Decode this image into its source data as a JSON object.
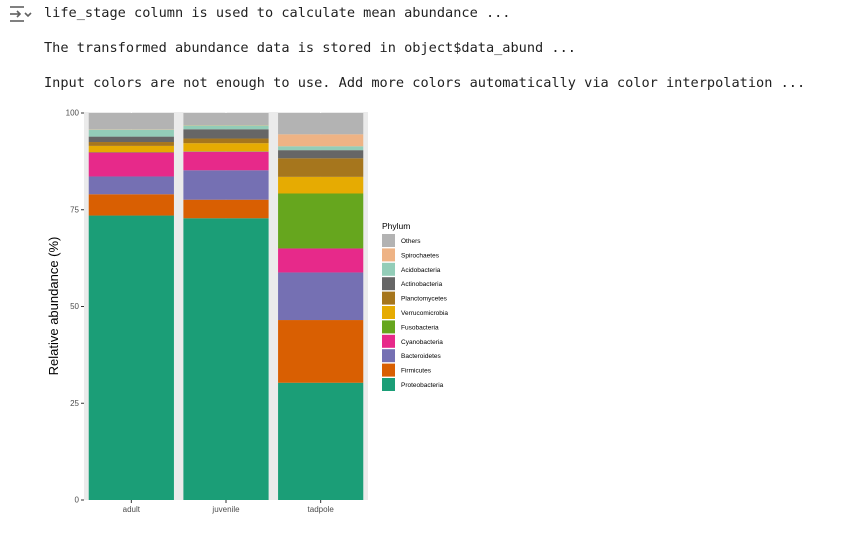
{
  "output": {
    "icon": "output-collapse-icon",
    "lines": [
      "life_stage column is used to calculate mean abundance ...",
      "The transformed abundance data is stored in object$data_abund ...",
      "Input colors are not enough to use. Add more colors automatically via color interpolation ..."
    ]
  },
  "chart_data": {
    "type": "bar",
    "stacked": true,
    "categories": [
      "adult",
      "juvenile",
      "tadpole"
    ],
    "ylabel": "Relative abundance (%)",
    "xlabel": "",
    "ylim": [
      0,
      100
    ],
    "yticks": [
      0,
      25,
      50,
      75,
      100
    ],
    "grid": true,
    "panel_background": "#ebebeb",
    "legend": {
      "title": "Phylum",
      "placement": "right",
      "items": [
        "Others",
        "Spirochaetes",
        "Acidobacteria",
        "Actinobacteria",
        "Planctomycetes",
        "Verrucomicrobia",
        "Fusobacteria",
        "Cyanobacteria",
        "Bacteroidetes",
        "Firmicutes",
        "Proteobacteria"
      ]
    },
    "series": [
      {
        "name": "Proteobacteria",
        "color": "#1b9e77",
        "values": [
          73.5,
          72.8,
          30.3
        ]
      },
      {
        "name": "Firmicutes",
        "color": "#d95f02",
        "values": [
          5.5,
          4.8,
          16.2
        ]
      },
      {
        "name": "Bacteroidetes",
        "color": "#7570b3",
        "values": [
          4.6,
          7.6,
          12.3
        ]
      },
      {
        "name": "Cyanobacteria",
        "color": "#e7298a",
        "values": [
          6.2,
          4.8,
          6.2
        ]
      },
      {
        "name": "Fusobacteria",
        "color": "#66a61e",
        "values": [
          0.1,
          0.1,
          14.2
        ]
      },
      {
        "name": "Verrucomicrobia",
        "color": "#e6ab02",
        "values": [
          1.6,
          2.1,
          4.3
        ]
      },
      {
        "name": "Planctomycetes",
        "color": "#a6761d",
        "values": [
          1.0,
          1.2,
          4.8
        ]
      },
      {
        "name": "Actinobacteria",
        "color": "#666666",
        "values": [
          1.4,
          2.4,
          2.1
        ]
      },
      {
        "name": "Acidobacteria",
        "color": "#93cdb8",
        "values": [
          1.8,
          1.0,
          1.0
        ]
      },
      {
        "name": "Spirochaetes",
        "color": "#eeb385",
        "values": [
          0.1,
          0.1,
          3.1
        ]
      },
      {
        "name": "Others",
        "color": "#b3b3b3",
        "values": [
          4.2,
          3.1,
          5.5
        ]
      }
    ]
  }
}
